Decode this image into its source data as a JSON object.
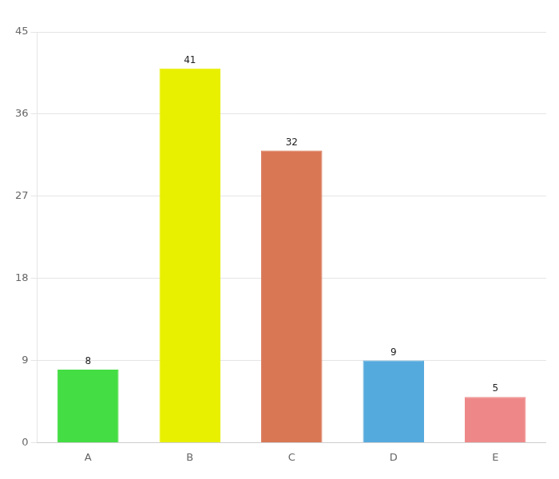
{
  "chart_data": {
    "type": "bar",
    "categories": [
      "A",
      "B",
      "C",
      "D",
      "E"
    ],
    "values": [
      8,
      41,
      32,
      9,
      5
    ],
    "colors": [
      "#44dd44",
      "#e8f000",
      "#d97755",
      "#55aadd",
      "#ee8888"
    ],
    "ylim": [
      0,
      45
    ],
    "yticks": [
      0,
      9,
      18,
      27,
      36,
      45
    ],
    "grid": true,
    "data_labels": true
  }
}
